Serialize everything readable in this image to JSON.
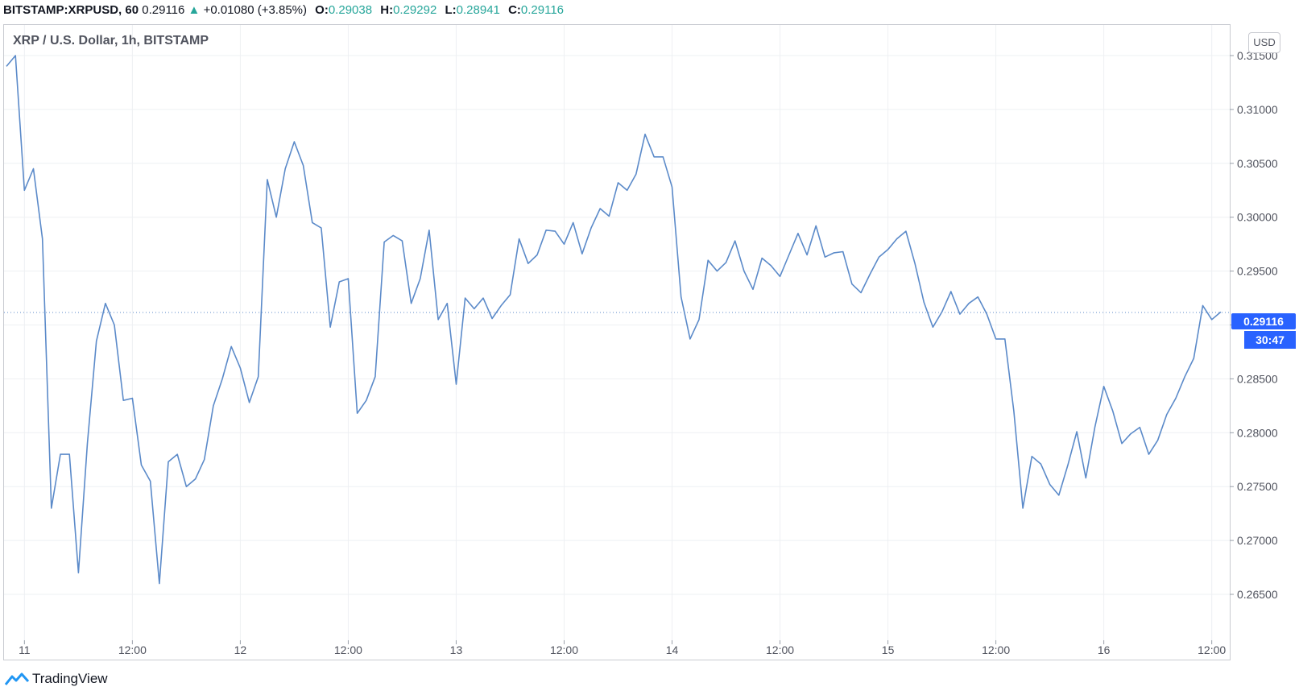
{
  "header": {
    "symbol": "BITSTAMP:XRPUSD, 60",
    "last": "0.29116",
    "change_arrow": "▲",
    "change": "+0.01080 (+3.85%)",
    "o_label": "O:",
    "o_value": "0.29038",
    "h_label": "H:",
    "h_value": "0.29292",
    "l_label": "L:",
    "l_value": "0.28941",
    "c_label": "C:",
    "c_value": "0.29116"
  },
  "legend": "XRP / U.S. Dollar, 1h, BITSTAMP",
  "currency_button": "USD",
  "price_tag": "0.29116",
  "countdown": "30:47",
  "brand": "TradingView",
  "colors": {
    "line": "#5b8ac9",
    "accent": "#2962ff",
    "up": "#26a69a",
    "grid": "#eef0f3"
  },
  "chart_data": {
    "type": "line",
    "title": "XRP / U.S. Dollar, 1h, BITSTAMP",
    "ylim": [
      0.263,
      0.318
    ],
    "y_ticks": [
      0.315,
      0.31,
      0.305,
      0.3,
      0.295,
      0.29,
      0.285,
      0.28,
      0.275,
      0.27,
      0.265
    ],
    "x_ticks": [
      {
        "label": "11",
        "x": 2
      },
      {
        "label": "12:00",
        "x": 14
      },
      {
        "label": "12",
        "x": 26
      },
      {
        "label": "12:00",
        "x": 38
      },
      {
        "label": "13",
        "x": 50
      },
      {
        "label": "12:00",
        "x": 62
      },
      {
        "label": "14",
        "x": 74
      },
      {
        "label": "12:00",
        "x": 86
      },
      {
        "label": "15",
        "x": 98
      },
      {
        "label": "12:00",
        "x": 110
      },
      {
        "label": "16",
        "x": 122
      },
      {
        "label": "12:00",
        "x": 134
      }
    ],
    "x_range": [
      0,
      136
    ],
    "last_price": 0.29116,
    "grid": true,
    "series": [
      {
        "values": [
          0.314,
          0.315,
          0.3025,
          0.3045,
          0.298,
          0.273,
          0.278,
          0.278,
          0.267,
          0.279,
          0.2885,
          0.292,
          0.29,
          0.283,
          0.2832,
          0.277,
          0.2755,
          0.266,
          0.2773,
          0.278,
          0.275,
          0.2757,
          0.2775,
          0.2825,
          0.285,
          0.288,
          0.286,
          0.2828,
          0.2852,
          0.3035,
          0.3,
          0.3045,
          0.307,
          0.3048,
          0.2995,
          0.299,
          0.2898,
          0.294,
          0.2943,
          0.2818,
          0.283,
          0.2852,
          0.2977,
          0.2983,
          0.2978,
          0.292,
          0.2943,
          0.2988,
          0.2905,
          0.292,
          0.2845,
          0.2925,
          0.2915,
          0.2925,
          0.2906,
          0.2918,
          0.2928,
          0.298,
          0.2957,
          0.2965,
          0.2988,
          0.2987,
          0.2975,
          0.2995,
          0.2966,
          0.299,
          0.3008,
          0.3001,
          0.3032,
          0.3025,
          0.304,
          0.3077,
          0.3056,
          0.3056,
          0.3028,
          0.2926,
          0.2887,
          0.2905,
          0.296,
          0.295,
          0.2958,
          0.2978,
          0.295,
          0.2933,
          0.2962,
          0.2955,
          0.2945,
          0.2965,
          0.2985,
          0.2965,
          0.2992,
          0.2963,
          0.2967,
          0.2968,
          0.2938,
          0.293,
          0.2947,
          0.2963,
          0.297,
          0.298,
          0.2987,
          0.2957,
          0.2921,
          0.2898,
          0.2912,
          0.2931,
          0.291,
          0.292,
          0.2926,
          0.291,
          0.2887,
          0.2887,
          0.282,
          0.273,
          0.2778,
          0.2771,
          0.2752,
          0.2742,
          0.277,
          0.2801,
          0.2758,
          0.2805,
          0.2843,
          0.282,
          0.279,
          0.2799,
          0.2805,
          0.278,
          0.2793,
          0.2817,
          0.2832,
          0.2852,
          0.2869,
          0.2918,
          0.2905,
          0.2912
        ]
      }
    ]
  }
}
